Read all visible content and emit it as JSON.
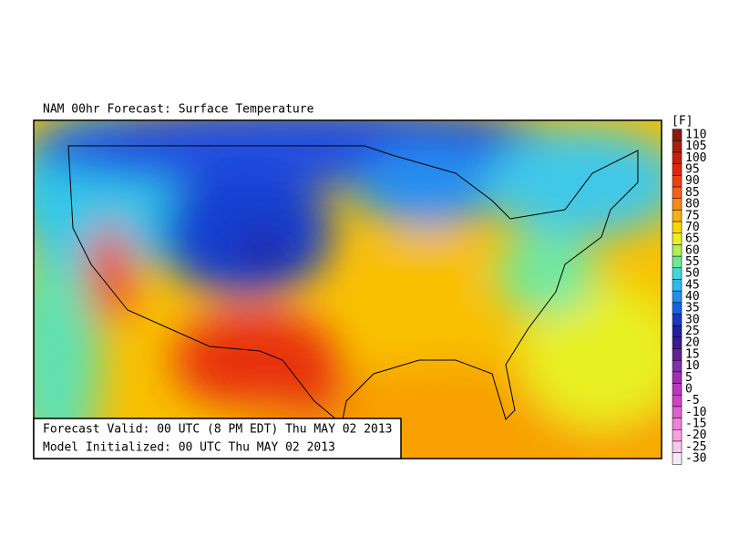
{
  "title": "NAM 00hr Forecast: Surface Temperature",
  "colorbar": {
    "unit": "[F]",
    "levels": [
      110,
      105,
      100,
      95,
      90,
      85,
      80,
      75,
      70,
      65,
      60,
      55,
      50,
      45,
      40,
      35,
      30,
      25,
      20,
      15,
      10,
      5,
      0,
      -5,
      -10,
      -15,
      -20,
      -25,
      -30
    ],
    "colors": [
      "#8a1a10",
      "#a82010",
      "#c82008",
      "#e02808",
      "#f04010",
      "#f86018",
      "#f88818",
      "#f8b010",
      "#f8d800",
      "#e8f020",
      "#b0f050",
      "#70e890",
      "#40d8d8",
      "#30b8f0",
      "#2090f0",
      "#1860e0",
      "#1838c0",
      "#2020a0",
      "#401890",
      "#602090",
      "#8030a8",
      "#a030b0",
      "#b838c0",
      "#d040c8",
      "#e060d0",
      "#f080d8",
      "#f8a0e0",
      "#f8c8ec",
      "#f8e8f4"
    ]
  },
  "info": {
    "valid": "Forecast Valid: 00 UTC (8 PM EDT) Thu MAY 02 2013",
    "initialized": "Model Initialized: 00 UTC Thu MAY 02 2013"
  }
}
